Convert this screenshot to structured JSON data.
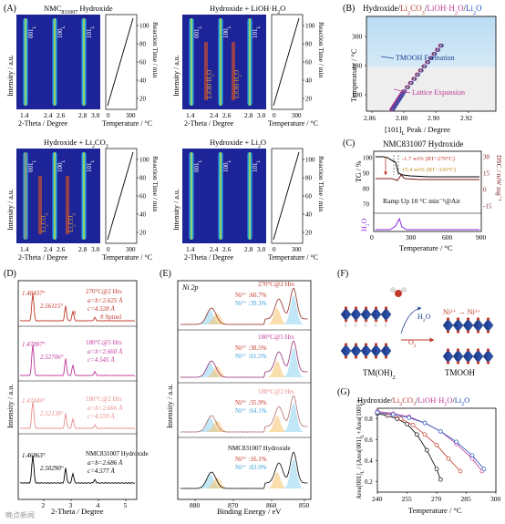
{
  "panels": {
    "A": {
      "letter": "(A)",
      "subpanels": [
        {
          "title": "NMC831007 Hydroxide",
          "peaks": [
            "001L",
            "100L",
            "101L"
          ]
        },
        {
          "title": "Hydroxide + LiOH·H2O",
          "peaks": [
            "001L",
            "100L",
            "101L"
          ],
          "extra": [
            "LiOH·H2O",
            "LiOH·H2O"
          ]
        },
        {
          "title": "Hydroxide + Li2CO3",
          "peaks": [
            "001L",
            "100L",
            "101L"
          ],
          "extra": [
            "Li2CO3",
            "Li2CO3"
          ]
        },
        {
          "title": "Hydroxide + Li2O",
          "peaks": [
            "001L",
            "100L",
            "101L"
          ]
        }
      ],
      "ylabel": "Intensity / a.u.",
      "xlabel": "2-Theta / Degree",
      "tlabel": "Temperature / °C",
      "rlabel": "Reaction Time / min",
      "xticks": [
        "1.4",
        "2.4",
        "2.6",
        "2.8",
        "3.0"
      ],
      "tticks": [
        "0",
        "300"
      ],
      "rticks": [
        "20",
        "40",
        "60",
        "80",
        "100"
      ]
    },
    "B": {
      "letter": "(B)",
      "title_parts": [
        "Hydroxide/",
        "Li2CO3",
        "/",
        "LiOH·H2O",
        "/",
        "Li2O"
      ],
      "ylabel": "Temperature / °C",
      "xlabel": "[101]L Peak / Degree",
      "xticks": [
        "2.86",
        "2.88",
        "2.90",
        "2.92"
      ],
      "yticks": [
        "100",
        "200",
        "300"
      ],
      "label_upper": "TMOOH Formation",
      "label_lower": "Lattice Expansion"
    },
    "C": {
      "letter": "(C)",
      "title": "NMC831007 Hydroxide",
      "ylabel_left": "TG / %",
      "ylabel_right": "DSC / mW mg⁻¹",
      "ylabel_h2o": "H2O",
      "xlabel": "Temperature / °C",
      "xticks": [
        "0",
        "300",
        "600",
        "900"
      ],
      "yticks_left": [
        "70",
        "80",
        "90",
        "100"
      ],
      "yticks_right": [
        "-15",
        "0",
        "15",
        "30"
      ],
      "ann1": "-1.7 wt% (RT~270°C)",
      "ann2": "15.4 wt% (RT~330°C)",
      "ramp": "Ramp Up 10 °C min⁻¹@Air"
    },
    "D": {
      "letter": "(D)",
      "ylabel": "Intensity / a.u.",
      "xlabel": "2-Theta / Degree",
      "xticks": [
        "2",
        "3",
        "4",
        "5"
      ],
      "traces": [
        {
          "label": "270°C@2 Hrs",
          "p1": "1.48437°",
          "p2": "2.56115°",
          "a": "a=b=2.625 Å",
          "c": "c=4.528 Å",
          "spinel": "# Spinel",
          "color": "#c0392b"
        },
        {
          "label": "180°C@5 Hrs",
          "p1": "1.47887°",
          "p2": "2.52706°",
          "a": "a=b=2.660 Å",
          "c": "c=4.545 Å",
          "color": "#c0399a"
        },
        {
          "label": "180°C@2 Hrs",
          "p1": "1.47449°",
          "p2": "2.52138°",
          "a": "a=b=2.666 Å",
          "c": "c=4.559 Å",
          "color": "#e88e8e"
        },
        {
          "label": "NMC831007 Hydroxide",
          "p1": "1.46863°",
          "p2": "2.50290°",
          "a": "a=b=2.686 Å",
          "c": "c=4.577 Å",
          "color": "#000000"
        }
      ]
    },
    "E": {
      "letter": "(E)",
      "tag": "Ni 2p",
      "ylabel": "Intensity / a.u.",
      "xlabel": "Binding Energy / eV",
      "xticks": [
        "880",
        "870",
        "860",
        "850"
      ],
      "traces": [
        {
          "label": "270°C@2 Hrs",
          "ni3": "Ni³⁺ :60.7%",
          "ni2": "Ni²⁺ :39.3%",
          "color": "#c0392b"
        },
        {
          "label": "180°C@5 Hrs",
          "ni3": "Ni³⁺ :38.5%",
          "ni2": "Ni²⁺ :61.5%",
          "color": "#c0399a"
        },
        {
          "label": "180°C@2 Hrs",
          "ni3": "Ni³⁺ :35.9%",
          "ni2": "Ni²⁺ :64.1%",
          "color": "#e88e8e"
        },
        {
          "label": "NMC831007 Hydroxide",
          "ni3": "Ni³⁺ :16.1%",
          "ni2": "Ni²⁺ :83.9%",
          "color": "#000000"
        }
      ]
    },
    "F": {
      "letter": "(F)",
      "left_label": "TM(OH)2",
      "right_label": "TMOOH",
      "h2o": "H2O",
      "o2": "O2",
      "ni": "Ni²⁺ → Ni³⁺"
    },
    "G": {
      "letter": "(G)",
      "title_parts": [
        "Hydroxide/",
        "Li2CO3",
        "/",
        "LiOH·H2O",
        "/",
        "Li2O"
      ],
      "ylabel": "Area[001]L / (Area[001]L+Area[100]L)",
      "xlabel": "Temperature / °C",
      "xticks": [
        "240",
        "255",
        "270",
        "285",
        "300"
      ],
      "yticks": [
        "0.2",
        "0.4",
        "0.6",
        "0.8"
      ]
    }
  },
  "colors": {
    "red": "#c0392b",
    "magenta": "#c0399a",
    "pink": "#e88e8e",
    "blue": "#1f4fbf",
    "navy": "#1d3f8f"
  },
  "watermark": "晚点新闻"
}
